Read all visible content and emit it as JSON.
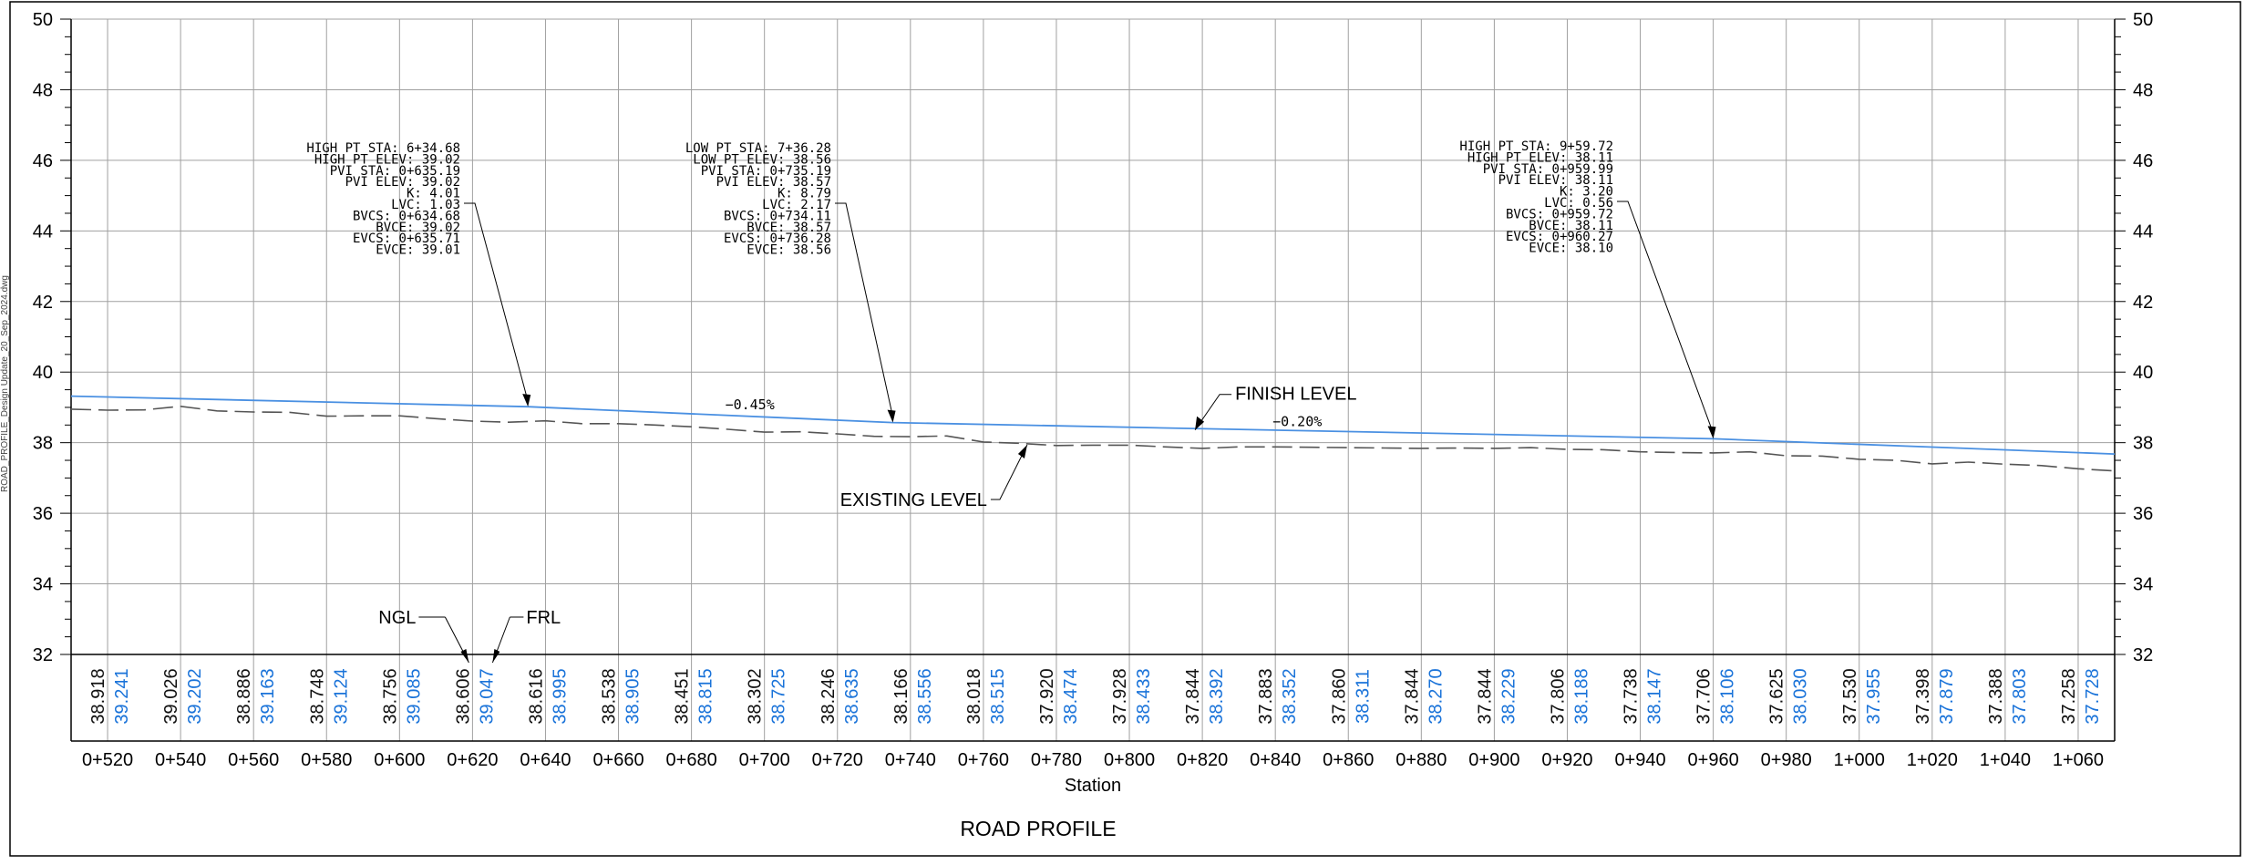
{
  "title": "ROAD PROFILE",
  "xlabel": "Station",
  "side_text": "ROAD_PROFILE_Design Update_20_Sep_2024.dwg",
  "chart_data": {
    "type": "line",
    "title": "ROAD PROFILE",
    "xlabel": "Station",
    "ylabel": "",
    "xlim": [
      510,
      1070
    ],
    "ylim": [
      32,
      50
    ],
    "y_ticks": [
      32,
      34,
      36,
      38,
      40,
      42,
      44,
      46,
      48,
      50
    ],
    "stations": [
      520,
      540,
      560,
      580,
      600,
      620,
      640,
      660,
      680,
      700,
      720,
      740,
      760,
      780,
      800,
      820,
      840,
      860,
      880,
      900,
      920,
      940,
      960,
      980,
      1000,
      1020,
      1040,
      1060
    ],
    "station_labels": [
      "0+520",
      "0+540",
      "0+560",
      "0+580",
      "0+600",
      "0+620",
      "0+640",
      "0+660",
      "0+680",
      "0+700",
      "0+720",
      "0+740",
      "0+760",
      "0+780",
      "0+800",
      "0+820",
      "0+840",
      "0+860",
      "0+880",
      "0+900",
      "0+920",
      "0+940",
      "0+960",
      "0+980",
      "1+000",
      "1+020",
      "1+040",
      "1+060"
    ],
    "ngl_values": [
      "38.918",
      "39.026",
      "38.886",
      "38.748",
      "38.756",
      "38.606",
      "38.616",
      "38.538",
      "38.451",
      "38.302",
      "38.246",
      "38.166",
      "38.018",
      "37.920",
      "37.928",
      "37.844",
      "37.883",
      "37.860",
      "37.844",
      "37.844",
      "37.806",
      "37.738",
      "37.706",
      "37.625",
      "37.530",
      "37.398",
      "37.388",
      "37.258"
    ],
    "frl_values": [
      "39.241",
      "39.202",
      "39.163",
      "39.124",
      "39.085",
      "39.047",
      "38.995",
      "38.905",
      "38.815",
      "38.725",
      "38.635",
      "38.556",
      "38.515",
      "38.474",
      "38.433",
      "38.392",
      "38.352",
      "38.311",
      "38.270",
      "38.229",
      "38.188",
      "38.147",
      "38.106",
      "38.030",
      "37.955",
      "37.879",
      "37.803",
      "37.728"
    ],
    "series": [
      {
        "name": "FINISH LEVEL",
        "color": "#4a90e2",
        "style": "solid",
        "x": [
          510,
          635.19,
          735.19,
          959.99,
          1070
        ],
        "y": [
          39.32,
          39.02,
          38.57,
          38.11,
          37.68
        ]
      },
      {
        "name": "EXISTING LEVEL",
        "color": "#555555",
        "style": "dashed",
        "x": [
          510,
          520,
          530,
          540,
          550,
          560,
          570,
          580,
          590,
          600,
          610,
          620,
          630,
          640,
          650,
          660,
          670,
          680,
          690,
          700,
          710,
          720,
          730,
          740,
          750,
          760,
          770,
          780,
          790,
          800,
          810,
          820,
          830,
          840,
          850,
          860,
          870,
          880,
          890,
          900,
          910,
          920,
          930,
          940,
          950,
          960,
          970,
          980,
          990,
          1000,
          1010,
          1020,
          1030,
          1040,
          1050,
          1060,
          1070
        ],
        "y": [
          38.95,
          38.92,
          38.93,
          39.03,
          38.9,
          38.87,
          38.86,
          38.75,
          38.76,
          38.76,
          38.68,
          38.61,
          38.58,
          38.62,
          38.54,
          38.54,
          38.5,
          38.45,
          38.38,
          38.3,
          38.31,
          38.25,
          38.18,
          38.17,
          38.19,
          38.02,
          37.98,
          37.92,
          37.93,
          37.93,
          37.88,
          37.84,
          37.88,
          37.88,
          37.87,
          37.86,
          37.85,
          37.84,
          37.85,
          37.84,
          37.86,
          37.81,
          37.8,
          37.74,
          37.72,
          37.71,
          37.74,
          37.63,
          37.62,
          37.53,
          37.5,
          37.4,
          37.45,
          37.39,
          37.35,
          37.26,
          37.2
        ]
      }
    ],
    "grades": [
      "−0.45%",
      "−0.20%"
    ],
    "band_labels": {
      "ngl": "NGL",
      "frl": "FRL"
    },
    "curve_annotations": [
      {
        "lines": [
          "HIGH PT STA:  6+34.68",
          "HIGH PT ELEV:  39.02",
          "PVI STA: 0+635.19",
          "PVI ELEV: 39.02",
          "K: 4.01",
          "LVC: 1.03",
          "BVCS:  0+634.68",
          "BVCE:  39.02",
          "EVCS:  0+635.71",
          "EVCE:  39.01"
        ],
        "target_station": 635.19,
        "target_elev": 39.02
      },
      {
        "lines": [
          "LOW PT STA:  7+36.28",
          "LOW PT ELEV:  38.56",
          "PVI STA: 0+735.19",
          "PVI ELEV: 38.57",
          "K: 8.79",
          "LVC: 2.17",
          "BVCS:  0+734.11",
          "BVCE:  38.57",
          "EVCS:  0+736.28",
          "EVCE:  38.56"
        ],
        "target_station": 735.19,
        "target_elev": 38.57
      },
      {
        "lines": [
          "HIGH PT STA:  9+59.72",
          "HIGH PT ELEV:  38.11",
          "PVI STA: 0+959.99",
          "PVI ELEV: 38.11",
          "K: 3.20",
          "LVC: 0.56",
          "BVCS:  0+959.72",
          "BVCE:  38.11",
          "EVCS:  0+960.27",
          "EVCE:  38.10"
        ],
        "target_station": 959.99,
        "target_elev": 38.11
      }
    ],
    "callouts": {
      "finish": "FINISH LEVEL",
      "existing": "EXISTING LEVEL"
    },
    "colors": {
      "frl_text": "#1a73d9",
      "finish_line": "#4a90e2",
      "grid": "#a0a0a0",
      "axis": "#000000"
    }
  }
}
